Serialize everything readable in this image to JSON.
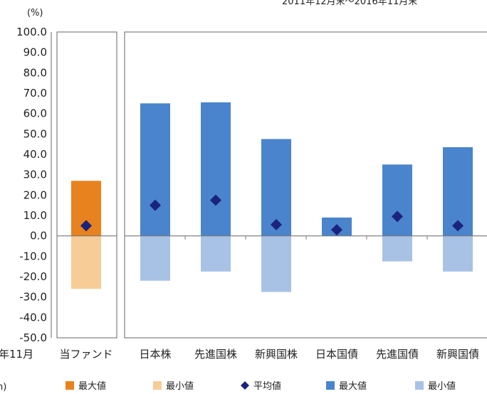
{
  "chart_data": {
    "type": "bar",
    "ylabel": "(%)",
    "ylim": [
      -50,
      100
    ],
    "yticks": [
      "100.0",
      "90.0",
      "80.0",
      "70.0",
      "60.0",
      "50.0",
      "40.0",
      "30.0",
      "20.0",
      "10.0",
      "0.0",
      "-10.0",
      "-20.0",
      "-30.0",
      "-40.0",
      "-50.0"
    ],
    "categories": [
      "当ファンド",
      "日本株",
      "先進国株",
      "新興国株",
      "日本国債",
      "先進国債",
      "新興国債"
    ],
    "series": [
      {
        "name": "最大値",
        "values": [
          27.0,
          65.0,
          65.5,
          47.5,
          9.0,
          35.0,
          43.5
        ]
      },
      {
        "name": "最小値",
        "values": [
          -26.0,
          -22.0,
          -17.5,
          -27.5,
          0.0,
          -12.5,
          -17.5
        ]
      },
      {
        "name": "平均値",
        "values": [
          5.0,
          15.0,
          17.5,
          5.5,
          3.0,
          9.5,
          5.0
        ]
      }
    ],
    "colors": {
      "fund_max": "#e8821e",
      "fund_min": "#f8cc97",
      "asset_max": "#4a84cc",
      "asset_min": "#a8c2e6",
      "avg": "#1a237e"
    },
    "legend": [
      {
        "label": "最大値",
        "color": "#e8821e",
        "shape": "square"
      },
      {
        "label": "最小値",
        "color": "#f8cc97",
        "shape": "square"
      },
      {
        "label": "平均値",
        "color": "#1a237e",
        "shape": "diamond"
      },
      {
        "label": "最大値",
        "color": "#4a84cc",
        "shape": "square"
      },
      {
        "label": "最小値",
        "color": "#a8c2e6",
        "shape": "square"
      }
    ],
    "legend_position": "bottom",
    "grid": false
  },
  "fragments": {
    "top_right": "2011年12月末～2016年11月末",
    "bottom_left_axis": "年11月",
    "legend_left": "n)"
  }
}
